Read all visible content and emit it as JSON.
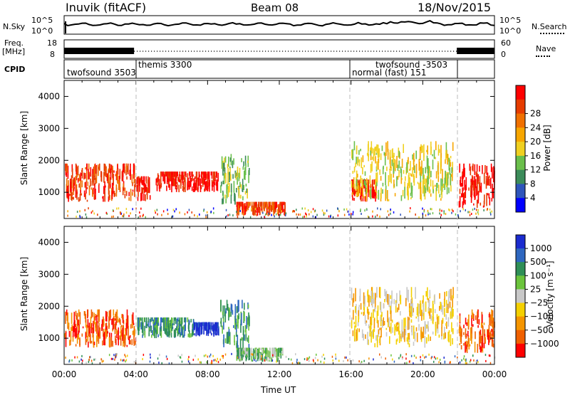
{
  "header": {
    "station": "Inuvik (fitACF)",
    "beam": "Beam 08",
    "date": "18/Nov/2015"
  },
  "nsky_panel": {
    "left_label": "N.Sky",
    "right_label": "N.Search",
    "left_ticks": [
      "10^5",
      "10^0"
    ],
    "right_ticks": [
      "10^5",
      "10^0"
    ]
  },
  "freq_panel": {
    "left_label_1": "Freq.",
    "left_label_2": "[MHz]",
    "right_label": "Nave",
    "left_ticks": [
      "18",
      "8"
    ],
    "right_ticks": [
      "60",
      "0"
    ]
  },
  "cpid": {
    "label": "CPID",
    "modes": [
      "twofsound 3503",
      "themis 3300",
      "normal (fast) 151",
      "twofsound -3503"
    ]
  },
  "colors": {
    "power": [
      "#0000ff",
      "#2e55bb",
      "#3c8c5a",
      "#6abf4b",
      "#f0d020",
      "#f7a600",
      "#f07000",
      "#e63c00",
      "#ff0000"
    ],
    "velocity": [
      "#1b2ccf",
      "#2e67c0",
      "#2f8f57",
      "#6bc43c",
      "#c8c8c8",
      "#f4d000",
      "#f59500",
      "#f06000",
      "#ff0000"
    ]
  },
  "chart_data": [
    {
      "type": "heatmap",
      "title": "",
      "xlabel": "Time UT",
      "ylabel": "Slant Range [km]",
      "xlim": [
        "00:00",
        "24:00"
      ],
      "ylim": [
        180,
        4500
      ],
      "x_ticks": [
        "00:00",
        "04:00",
        "08:00",
        "12:00",
        "16:00",
        "20:00",
        "00:00"
      ],
      "y_ticks": [
        1000,
        2000,
        3000,
        4000
      ],
      "colorbar": {
        "label": "Power [dB]",
        "ticks": [
          4,
          8,
          12,
          16,
          20,
          24,
          28
        ]
      },
      "echo_regions": [
        {
          "t_start": 0.0,
          "t_end": 4.0,
          "r_min": 700,
          "r_max": 1900,
          "value": 26
        },
        {
          "t_start": 4.0,
          "t_end": 4.8,
          "r_min": 700,
          "r_max": 1500,
          "value": 28
        },
        {
          "t_start": 5.1,
          "t_end": 8.6,
          "r_min": 1000,
          "r_max": 1650,
          "value": 27
        },
        {
          "t_start": 8.7,
          "t_end": 10.3,
          "r_min": 600,
          "r_max": 2200,
          "value": 12
        },
        {
          "t_start": 9.6,
          "t_end": 12.3,
          "r_min": 250,
          "r_max": 700,
          "value": 24
        },
        {
          "t_start": 16.0,
          "t_end": 17.4,
          "r_min": 700,
          "r_max": 1400,
          "value": 27
        },
        {
          "t_start": 16.0,
          "t_end": 21.7,
          "r_min": 700,
          "r_max": 2600,
          "value": 16
        },
        {
          "t_start": 22.0,
          "t_end": 24.0,
          "r_min": 500,
          "r_max": 1900,
          "value": 28
        }
      ]
    },
    {
      "type": "heatmap",
      "title": "",
      "xlabel": "Time UT",
      "ylabel": "Slant Range [km]",
      "xlim": [
        "00:00",
        "24:00"
      ],
      "ylim": [
        180,
        4500
      ],
      "x_ticks": [
        "00:00",
        "04:00",
        "08:00",
        "12:00",
        "16:00",
        "20:00",
        "00:00"
      ],
      "y_ticks": [
        1000,
        2000,
        3000,
        4000
      ],
      "colorbar": {
        "label": "Velocity [m s⁻¹]",
        "ticks": [
          "1000",
          "500",
          "100",
          "25",
          "−25",
          "−100",
          "−500",
          "−1000"
        ]
      },
      "echo_regions": [
        {
          "t_start": 0.0,
          "t_end": 4.0,
          "r_min": 700,
          "r_max": 1900,
          "value": -300
        },
        {
          "t_start": 4.0,
          "t_end": 7.2,
          "r_min": 1000,
          "r_max": 1650,
          "value": 150
        },
        {
          "t_start": 7.2,
          "t_end": 8.6,
          "r_min": 1050,
          "r_max": 1500,
          "value": 1000
        },
        {
          "t_start": 8.7,
          "t_end": 10.3,
          "r_min": 600,
          "r_max": 2200,
          "value": 300
        },
        {
          "t_start": 9.6,
          "t_end": 12.3,
          "r_min": 250,
          "r_max": 700,
          "value": 60
        },
        {
          "t_start": 16.0,
          "t_end": 21.7,
          "r_min": 700,
          "r_max": 2600,
          "value": -60
        },
        {
          "t_start": 22.0,
          "t_end": 24.0,
          "r_min": 500,
          "r_max": 1900,
          "value": -400
        }
      ]
    }
  ]
}
